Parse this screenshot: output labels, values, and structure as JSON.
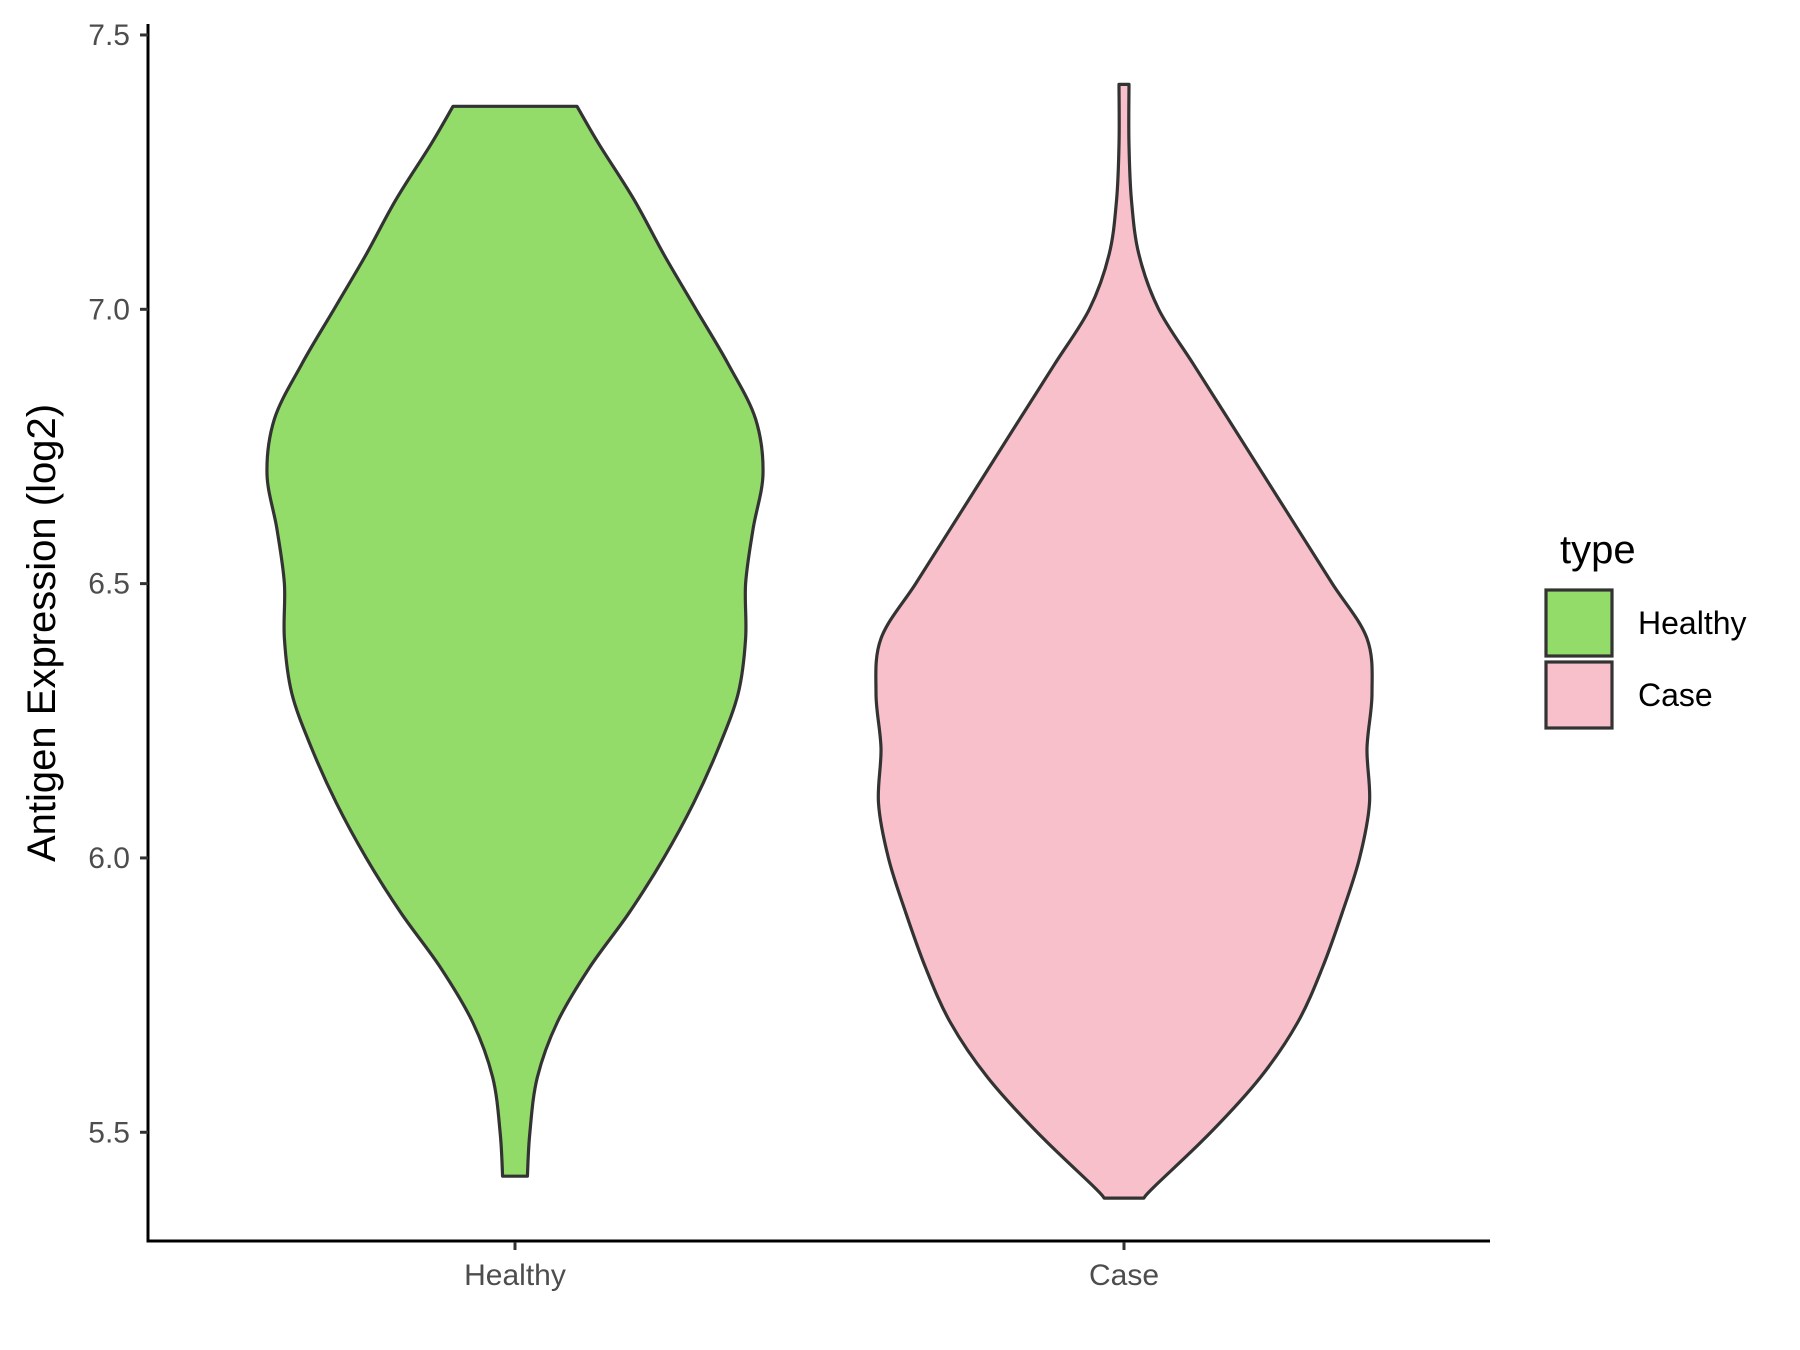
{
  "chart_data": {
    "type": "violin",
    "ylabel": "Antigen Expression (log2)",
    "xlabel": "",
    "ylim": [
      5.3,
      7.52
    ],
    "yticks": [
      5.5,
      6.0,
      6.5,
      7.0,
      7.5
    ],
    "ytick_labels": [
      "5.5",
      "6.0",
      "6.5",
      "7.0",
      "7.5"
    ],
    "grid": false,
    "categories": [
      "Healthy",
      "Case"
    ],
    "legend": {
      "title": "type",
      "position": "right",
      "entries": [
        "Healthy",
        "Case"
      ]
    },
    "series": [
      {
        "name": "Healthy",
        "color": "#93dc6a",
        "y_min": 5.42,
        "y_max": 7.37,
        "profile": [
          [
            5.42,
            0.05
          ],
          [
            5.5,
            0.06
          ],
          [
            5.6,
            0.09
          ],
          [
            5.7,
            0.17
          ],
          [
            5.8,
            0.3
          ],
          [
            5.9,
            0.46
          ],
          [
            6.0,
            0.6
          ],
          [
            6.1,
            0.72
          ],
          [
            6.2,
            0.82
          ],
          [
            6.3,
            0.9
          ],
          [
            6.4,
            0.93
          ],
          [
            6.5,
            0.93
          ],
          [
            6.6,
            0.96
          ],
          [
            6.7,
            1.0
          ],
          [
            6.8,
            0.97
          ],
          [
            6.9,
            0.86
          ],
          [
            7.0,
            0.73
          ],
          [
            7.1,
            0.6
          ],
          [
            7.2,
            0.48
          ],
          [
            7.3,
            0.34
          ],
          [
            7.37,
            0.25
          ]
        ]
      },
      {
        "name": "Case",
        "color": "#f7c0cb",
        "y_min": 5.38,
        "y_max": 7.41,
        "profile": [
          [
            5.38,
            0.08
          ],
          [
            5.4,
            0.12
          ],
          [
            5.5,
            0.35
          ],
          [
            5.6,
            0.55
          ],
          [
            5.7,
            0.7
          ],
          [
            5.8,
            0.8
          ],
          [
            5.9,
            0.88
          ],
          [
            6.0,
            0.95
          ],
          [
            6.1,
            0.99
          ],
          [
            6.2,
            0.98
          ],
          [
            6.3,
            1.0
          ],
          [
            6.4,
            0.98
          ],
          [
            6.5,
            0.84
          ],
          [
            6.6,
            0.7
          ],
          [
            6.7,
            0.56
          ],
          [
            6.8,
            0.42
          ],
          [
            6.9,
            0.28
          ],
          [
            7.0,
            0.14
          ],
          [
            7.1,
            0.06
          ],
          [
            7.2,
            0.03
          ],
          [
            7.3,
            0.02
          ],
          [
            7.41,
            0.02
          ]
        ]
      }
    ]
  }
}
